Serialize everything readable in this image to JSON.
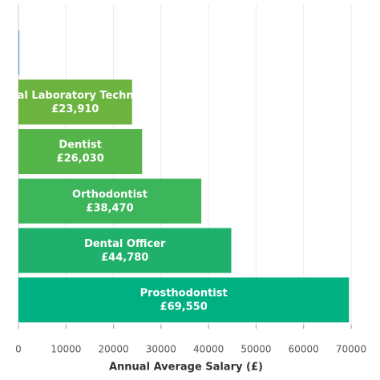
{
  "chart_data": {
    "type": "barh",
    "xlabel": "Annual Average Salary (£)",
    "categories": [
      null,
      "Dental Laboratory Technician",
      "Dentist",
      "Orthodontist",
      "Dental Officer",
      "Prosthodontist"
    ],
    "values": [
      200,
      23910,
      26030,
      38470,
      44780,
      69550
    ],
    "value_labels": [
      null,
      "£23,910",
      "£26,030",
      "£38,470",
      "£44,780",
      "£69,550"
    ],
    "colors": [
      "#5aa9d6",
      "#6db33f",
      "#56b54a",
      "#3db55b",
      "#1fb06c",
      "#00b080"
    ],
    "xlim": [
      0,
      70000
    ],
    "xticks": [
      0,
      10000,
      20000,
      30000,
      40000,
      50000,
      60000,
      70000
    ],
    "grid": true
  }
}
